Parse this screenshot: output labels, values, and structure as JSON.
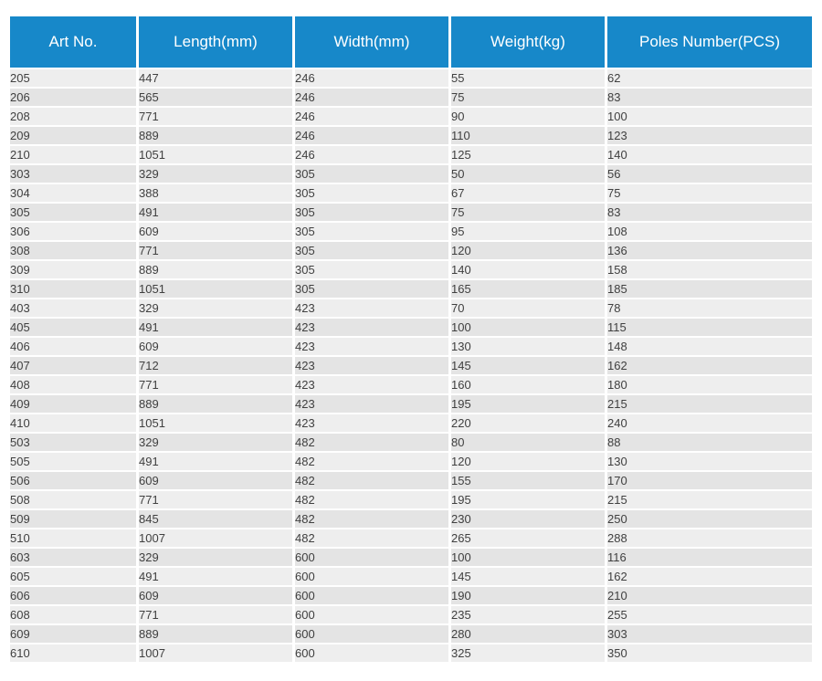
{
  "table": {
    "columns": [
      "Art No.",
      "Length(mm)",
      "Width(mm)",
      "Weight(kg)",
      "Poles Number(PCS)"
    ],
    "rows": [
      [
        "205",
        "447",
        "246",
        "55",
        "62"
      ],
      [
        "206",
        "565",
        "246",
        "75",
        "83"
      ],
      [
        "208",
        "771",
        "246",
        "90",
        "100"
      ],
      [
        "209",
        "889",
        "246",
        "110",
        "123"
      ],
      [
        "210",
        "1051",
        "246",
        "125",
        "140"
      ],
      [
        "303",
        "329",
        "305",
        "50",
        "56"
      ],
      [
        "304",
        "388",
        "305",
        "67",
        "75"
      ],
      [
        "305",
        "491",
        "305",
        "75",
        "83"
      ],
      [
        "306",
        "609",
        "305",
        "95",
        "108"
      ],
      [
        "308",
        "771",
        "305",
        "120",
        "136"
      ],
      [
        "309",
        "889",
        "305",
        "140",
        "158"
      ],
      [
        "310",
        "1051",
        "305",
        "165",
        "185"
      ],
      [
        "403",
        "329",
        "423",
        "70",
        "78"
      ],
      [
        "405",
        "491",
        "423",
        "100",
        "115"
      ],
      [
        "406",
        "609",
        "423",
        "130",
        "148"
      ],
      [
        "407",
        "712",
        "423",
        "145",
        "162"
      ],
      [
        "408",
        "771",
        "423",
        "160",
        "180"
      ],
      [
        "409",
        "889",
        "423",
        "195",
        "215"
      ],
      [
        "410",
        "1051",
        "423",
        "220",
        "240"
      ],
      [
        "503",
        "329",
        "482",
        "80",
        "88"
      ],
      [
        "505",
        "491",
        "482",
        "120",
        "130"
      ],
      [
        "506",
        "609",
        "482",
        "155",
        "170"
      ],
      [
        "508",
        "771",
        "482",
        "195",
        "215"
      ],
      [
        "509",
        "845",
        "482",
        "230",
        "250"
      ],
      [
        "510",
        "1007",
        "482",
        "265",
        "288"
      ],
      [
        "603",
        "329",
        "600",
        "100",
        "116"
      ],
      [
        "605",
        "491",
        "600",
        "145",
        "162"
      ],
      [
        "606",
        "609",
        "600",
        "190",
        "210"
      ],
      [
        "608",
        "771",
        "600",
        "235",
        "255"
      ],
      [
        "609",
        "889",
        "600",
        "280",
        "303"
      ],
      [
        "610",
        "1007",
        "600",
        "325",
        "350"
      ]
    ],
    "colors": {
      "header_bg": "#1788c9",
      "header_text": "#ffffff",
      "row_odd": "#eeeeee",
      "row_even": "#e4e4e4",
      "body_text": "#404040"
    }
  }
}
